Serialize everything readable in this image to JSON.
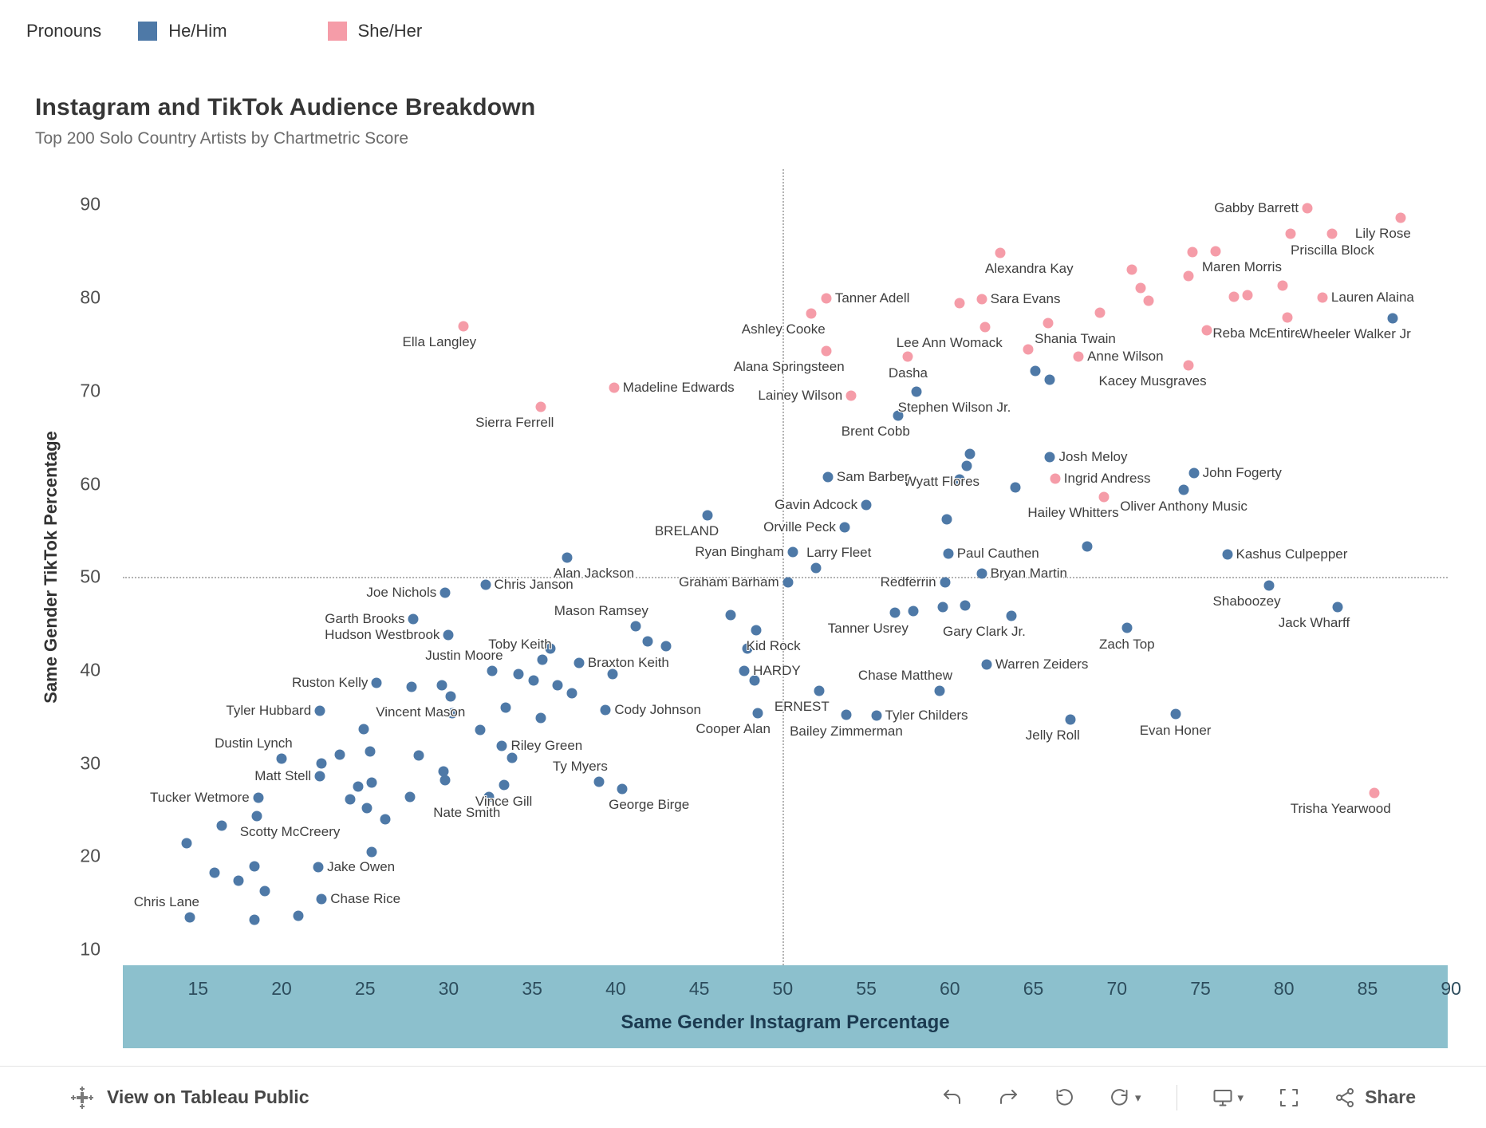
{
  "toolbar": {
    "view_label": "View on Tableau Public",
    "share_label": "Share"
  },
  "chart_data": {
    "type": "scatter",
    "title": "Instagram and TikTok Audience Breakdown",
    "subtitle": "Top 200 Solo Country Artists by Chartmetric Score",
    "legend_title": "Pronouns",
    "xlabel": "Same Gender Instagram Percentage",
    "ylabel": "Same Gender TikTok Percentage",
    "xlim": [
      10.5,
      89.8
    ],
    "ylim": [
      8.3,
      93.8
    ],
    "x_ticks": [
      15,
      20,
      25,
      30,
      35,
      40,
      45,
      50,
      55,
      60,
      65,
      70,
      75,
      80,
      85,
      90
    ],
    "y_ticks": [
      90,
      80,
      70,
      60,
      50,
      40,
      30,
      20,
      10
    ],
    "ref_x": 50,
    "ref_y": 50,
    "grid": "off",
    "legend_position": "top-left",
    "series": [
      {
        "key": "him",
        "name": "He/Him",
        "color": "#4E79A7"
      },
      {
        "key": "her",
        "name": "She/Her",
        "color": "#F59CA8"
      }
    ],
    "points": [
      {
        "n": "Gabby Barrett",
        "x": 81.4,
        "y": 89.6,
        "g": "her",
        "lp": "left"
      },
      {
        "n": "Lily Rose",
        "x": 87.0,
        "y": 88.6,
        "g": "her",
        "lp": "below-left"
      },
      {
        "n": "Priscilla Block",
        "x": 82.9,
        "y": 86.9,
        "g": "her",
        "lp": "below"
      },
      {
        "n": "Maren Morris",
        "x": 75.9,
        "y": 85.0,
        "g": "her",
        "lp": "below-right"
      },
      {
        "n": "Alexandra Kay",
        "x": 63.0,
        "y": 84.8,
        "g": "her",
        "lp": "below-right"
      },
      {
        "n": "Lauren Alaina",
        "x": 82.3,
        "y": 80.0,
        "g": "her",
        "lp": "right"
      },
      {
        "n": "Tanner Adell",
        "x": 52.6,
        "y": 79.9,
        "g": "her",
        "lp": "right"
      },
      {
        "n": "Sara Evans",
        "x": 61.9,
        "y": 79.8,
        "g": "her",
        "lp": "right"
      },
      {
        "n": "Ashley Cooke",
        "x": 51.7,
        "y": 78.3,
        "g": "her",
        "lp": "below-left"
      },
      {
        "n": "Lee Ann Womack",
        "x": 62.1,
        "y": 76.8,
        "g": "her",
        "lp": "below-left"
      },
      {
        "n": "Shania Twain",
        "x": 65.9,
        "y": 77.3,
        "g": "her",
        "lp": "below-right"
      },
      {
        "n": "Reba McEntire",
        "x": 80.2,
        "y": 77.9,
        "g": "her",
        "lp": "below-left"
      },
      {
        "n": "Anne Wilson",
        "x": 67.7,
        "y": 73.7,
        "g": "her",
        "lp": "right"
      },
      {
        "n": "Kacey Musgraves",
        "x": 74.3,
        "y": 72.7,
        "g": "her",
        "lp": "below-left"
      },
      {
        "n": "Alana Springsteen",
        "x": 52.6,
        "y": 74.3,
        "g": "her",
        "lp": "below-left"
      },
      {
        "n": "Dasha",
        "x": 57.5,
        "y": 73.7,
        "g": "her",
        "lp": "below"
      },
      {
        "n": "Lainey Wilson",
        "x": 54.1,
        "y": 69.5,
        "g": "her",
        "lp": "left"
      },
      {
        "n": "Madeline Edwards",
        "x": 39.9,
        "y": 70.3,
        "g": "her",
        "lp": "right"
      },
      {
        "n": "Sierra Ferrell",
        "x": 35.5,
        "y": 68.3,
        "g": "her",
        "lp": "below-left"
      },
      {
        "n": "Ella Langley",
        "x": 30.9,
        "y": 76.9,
        "g": "her",
        "lp": "below-left"
      },
      {
        "n": "Ingrid Andress",
        "x": 66.3,
        "y": 60.6,
        "g": "her",
        "lp": "right"
      },
      {
        "n": "Hailey Whitters",
        "x": 69.2,
        "y": 58.6,
        "g": "her",
        "lp": "below-left"
      },
      {
        "n": "Trisha Yearwood",
        "x": 85.4,
        "y": 26.8,
        "g": "her",
        "lp": "below-left"
      },
      {
        "x": 74.5,
        "y": 84.9,
        "g": "her"
      },
      {
        "x": 80.4,
        "y": 86.9,
        "g": "her"
      },
      {
        "x": 70.9,
        "y": 83.0,
        "g": "her"
      },
      {
        "x": 71.4,
        "y": 81.0,
        "g": "her"
      },
      {
        "x": 74.3,
        "y": 82.3,
        "g": "her"
      },
      {
        "x": 77.0,
        "y": 80.1,
        "g": "her"
      },
      {
        "x": 77.8,
        "y": 80.3,
        "g": "her"
      },
      {
        "x": 79.9,
        "y": 81.3,
        "g": "her"
      },
      {
        "x": 60.6,
        "y": 79.4,
        "g": "her"
      },
      {
        "x": 69.0,
        "y": 78.4,
        "g": "her"
      },
      {
        "x": 71.9,
        "y": 79.7,
        "g": "her"
      },
      {
        "x": 75.4,
        "y": 76.5,
        "g": "her"
      },
      {
        "x": 64.7,
        "y": 74.4,
        "g": "her"
      },
      {
        "n": "Wheeler Walker Jr",
        "x": 86.5,
        "y": 77.8,
        "g": "him",
        "lp": "below-left"
      },
      {
        "n": "Stephen Wilson Jr.",
        "x": 58.0,
        "y": 69.9,
        "g": "him",
        "lp": "below-right"
      },
      {
        "n": "Brent Cobb",
        "x": 56.9,
        "y": 67.3,
        "g": "him",
        "lp": "below-left"
      },
      {
        "n": "Josh Meloy",
        "x": 66.0,
        "y": 62.9,
        "g": "him",
        "lp": "right"
      },
      {
        "n": "Wyatt Flores",
        "x": 61.0,
        "y": 61.9,
        "g": "him",
        "lp": "below-left"
      },
      {
        "n": "Sam Barber",
        "x": 52.7,
        "y": 60.7,
        "g": "him",
        "lp": "right"
      },
      {
        "n": "John Fogerty",
        "x": 74.6,
        "y": 61.2,
        "g": "him",
        "lp": "right"
      },
      {
        "n": "Oliver Anthony Music",
        "x": 74.0,
        "y": 59.4,
        "g": "him",
        "lp": "below"
      },
      {
        "n": "Gavin Adcock",
        "x": 55.0,
        "y": 57.7,
        "g": "him",
        "lp": "left"
      },
      {
        "n": "BRELAND",
        "x": 45.5,
        "y": 56.6,
        "g": "him",
        "lp": "below-left"
      },
      {
        "n": "Orville Peck",
        "x": 53.7,
        "y": 55.3,
        "g": "him",
        "lp": "left"
      },
      {
        "n": "Ryan Bingham",
        "x": 50.6,
        "y": 52.7,
        "g": "him",
        "lp": "left"
      },
      {
        "n": "Larry Fleet",
        "x": 52.0,
        "y": 51.0,
        "g": "him",
        "lp": "above-right"
      },
      {
        "n": "Paul Cauthen",
        "x": 59.9,
        "y": 52.5,
        "g": "him",
        "lp": "right"
      },
      {
        "n": "Alan Jackson",
        "x": 37.1,
        "y": 52.1,
        "g": "him",
        "lp": "below-right"
      },
      {
        "n": "Chris Janson",
        "x": 32.2,
        "y": 49.2,
        "g": "him",
        "lp": "right"
      },
      {
        "n": "Joe Nichols",
        "x": 29.8,
        "y": 48.3,
        "g": "him",
        "lp": "left"
      },
      {
        "n": "Graham Barham",
        "x": 50.3,
        "y": 49.4,
        "g": "him",
        "lp": "left"
      },
      {
        "n": "Redferrin",
        "x": 59.7,
        "y": 49.4,
        "g": "him",
        "lp": "left"
      },
      {
        "n": "Bryan Martin",
        "x": 61.9,
        "y": 50.4,
        "g": "him",
        "lp": "right"
      },
      {
        "n": "Kashus Culpepper",
        "x": 76.6,
        "y": 52.4,
        "g": "him",
        "lp": "right"
      },
      {
        "n": "Shaboozey",
        "x": 79.1,
        "y": 49.1,
        "g": "him",
        "lp": "below-left"
      },
      {
        "n": "Jack Wharff",
        "x": 83.2,
        "y": 46.8,
        "g": "him",
        "lp": "below-left"
      },
      {
        "n": "Mason Ramsey",
        "x": 41.2,
        "y": 44.7,
        "g": "him",
        "lp": "above-left"
      },
      {
        "n": "Garth Brooks",
        "x": 27.9,
        "y": 45.5,
        "g": "him",
        "lp": "left"
      },
      {
        "n": "Kid Rock",
        "x": 48.4,
        "y": 44.3,
        "g": "him",
        "lp": "below-right"
      },
      {
        "n": "Tanner Usrey",
        "x": 56.7,
        "y": 46.2,
        "g": "him",
        "lp": "below-left"
      },
      {
        "n": "Gary Clark Jr.",
        "x": 63.7,
        "y": 45.8,
        "g": "him",
        "lp": "below-left"
      },
      {
        "n": "Zach Top",
        "x": 70.6,
        "y": 44.5,
        "g": "him",
        "lp": "below"
      },
      {
        "n": "Hudson Westbrook",
        "x": 30.0,
        "y": 43.8,
        "g": "him",
        "lp": "left"
      },
      {
        "n": "Toby Keith",
        "x": 35.6,
        "y": 41.1,
        "g": "him",
        "lp": "above-left"
      },
      {
        "n": "Braxton Keith",
        "x": 37.8,
        "y": 40.8,
        "g": "him",
        "lp": "right"
      },
      {
        "n": "Justin Moore",
        "x": 32.6,
        "y": 39.9,
        "g": "him",
        "lp": "above-left"
      },
      {
        "n": "Ruston Kelly",
        "x": 25.7,
        "y": 38.6,
        "g": "him",
        "lp": "left"
      },
      {
        "n": "HARDY",
        "x": 47.7,
        "y": 39.9,
        "g": "him",
        "lp": "right"
      },
      {
        "n": "Warren Zeiders",
        "x": 62.2,
        "y": 40.6,
        "g": "him",
        "lp": "right"
      },
      {
        "n": "Chase Matthew",
        "x": 59.4,
        "y": 37.8,
        "g": "him",
        "lp": "above-left"
      },
      {
        "n": "Vincent Mason",
        "x": 30.1,
        "y": 37.2,
        "g": "him",
        "lp": "below-left"
      },
      {
        "n": "Tyler Hubbard",
        "x": 22.3,
        "y": 35.6,
        "g": "him",
        "lp": "left"
      },
      {
        "n": "Cody Johnson",
        "x": 39.4,
        "y": 35.7,
        "g": "him",
        "lp": "right"
      },
      {
        "n": "ERNEST",
        "x": 52.2,
        "y": 37.8,
        "g": "him",
        "lp": "below-left"
      },
      {
        "n": "Tyler Childers",
        "x": 55.6,
        "y": 35.1,
        "g": "him",
        "lp": "right"
      },
      {
        "n": "Cooper Alan",
        "x": 48.5,
        "y": 35.4,
        "g": "him",
        "lp": "below-left"
      },
      {
        "n": "Bailey Zimmerman",
        "x": 53.8,
        "y": 35.2,
        "g": "him",
        "lp": "below"
      },
      {
        "n": "Jelly Roll",
        "x": 67.2,
        "y": 34.7,
        "g": "him",
        "lp": "below-left"
      },
      {
        "n": "Evan Honer",
        "x": 73.5,
        "y": 35.3,
        "g": "him",
        "lp": "below"
      },
      {
        "n": "Dustin Lynch",
        "x": 20.0,
        "y": 30.5,
        "g": "him",
        "lp": "above-left"
      },
      {
        "n": "Riley Green",
        "x": 33.2,
        "y": 31.9,
        "g": "him",
        "lp": "right"
      },
      {
        "n": "Matt Stell",
        "x": 22.3,
        "y": 28.6,
        "g": "him",
        "lp": "left"
      },
      {
        "n": "Ty Myers",
        "x": 39.0,
        "y": 28.0,
        "g": "him",
        "lp": "above-left"
      },
      {
        "n": "Tucker Wetmore",
        "x": 18.6,
        "y": 26.3,
        "g": "him",
        "lp": "left"
      },
      {
        "n": "Vince Gill",
        "x": 33.3,
        "y": 27.7,
        "g": "him",
        "lp": "below"
      },
      {
        "n": "George Birge",
        "x": 40.4,
        "y": 27.2,
        "g": "him",
        "lp": "below-right"
      },
      {
        "n": "Nate Smith",
        "x": 32.4,
        "y": 26.4,
        "g": "him",
        "lp": "below-left"
      },
      {
        "n": "Scotty McCreery",
        "x": 18.5,
        "y": 24.3,
        "g": "him",
        "lp": "below-right"
      },
      {
        "n": "Jake Owen",
        "x": 22.2,
        "y": 18.8,
        "g": "him",
        "lp": "right"
      },
      {
        "n": "Chase Rice",
        "x": 22.4,
        "y": 15.4,
        "g": "him",
        "lp": "right"
      },
      {
        "n": "Chris Lane",
        "x": 14.5,
        "y": 13.4,
        "g": "him",
        "lp": "above-left"
      },
      {
        "x": 57.8,
        "y": 46.3,
        "g": "him"
      },
      {
        "x": 59.6,
        "y": 46.8,
        "g": "him"
      },
      {
        "x": 60.9,
        "y": 46.9,
        "g": "him"
      },
      {
        "x": 60.6,
        "y": 60.5,
        "g": "him"
      },
      {
        "x": 61.2,
        "y": 63.2,
        "g": "him"
      },
      {
        "x": 59.8,
        "y": 56.2,
        "g": "him"
      },
      {
        "x": 63.9,
        "y": 59.6,
        "g": "him"
      },
      {
        "x": 68.2,
        "y": 53.3,
        "g": "him"
      },
      {
        "x": 65.1,
        "y": 72.1,
        "g": "him"
      },
      {
        "x": 66.0,
        "y": 71.2,
        "g": "him"
      },
      {
        "x": 27.8,
        "y": 38.2,
        "g": "him"
      },
      {
        "x": 29.6,
        "y": 38.4,
        "g": "him"
      },
      {
        "x": 34.2,
        "y": 39.6,
        "g": "him"
      },
      {
        "x": 35.1,
        "y": 38.9,
        "g": "him"
      },
      {
        "x": 36.5,
        "y": 38.4,
        "g": "him"
      },
      {
        "x": 37.4,
        "y": 37.5,
        "g": "him"
      },
      {
        "x": 33.4,
        "y": 36.0,
        "g": "him"
      },
      {
        "x": 31.9,
        "y": 33.6,
        "g": "him"
      },
      {
        "x": 35.5,
        "y": 34.9,
        "g": "him"
      },
      {
        "x": 33.8,
        "y": 30.6,
        "g": "him"
      },
      {
        "x": 36.1,
        "y": 42.3,
        "g": "him"
      },
      {
        "x": 39.8,
        "y": 39.6,
        "g": "him"
      },
      {
        "x": 41.9,
        "y": 43.1,
        "g": "him"
      },
      {
        "x": 43.0,
        "y": 42.6,
        "g": "him"
      },
      {
        "x": 46.9,
        "y": 45.9,
        "g": "him"
      },
      {
        "x": 47.9,
        "y": 42.3,
        "g": "him"
      },
      {
        "x": 48.3,
        "y": 38.9,
        "g": "him"
      },
      {
        "x": 24.9,
        "y": 33.7,
        "g": "him"
      },
      {
        "x": 23.5,
        "y": 30.9,
        "g": "him"
      },
      {
        "x": 25.3,
        "y": 31.3,
        "g": "him"
      },
      {
        "x": 28.2,
        "y": 30.8,
        "g": "him"
      },
      {
        "x": 29.8,
        "y": 28.2,
        "g": "him"
      },
      {
        "x": 22.4,
        "y": 30.0,
        "g": "him"
      },
      {
        "x": 24.6,
        "y": 27.5,
        "g": "him"
      },
      {
        "x": 25.4,
        "y": 27.9,
        "g": "him"
      },
      {
        "x": 24.1,
        "y": 26.1,
        "g": "him"
      },
      {
        "x": 25.1,
        "y": 25.2,
        "g": "him"
      },
      {
        "x": 27.7,
        "y": 26.4,
        "g": "him"
      },
      {
        "x": 29.7,
        "y": 29.1,
        "g": "him"
      },
      {
        "x": 30.2,
        "y": 35.4,
        "g": "him"
      },
      {
        "x": 26.2,
        "y": 24.0,
        "g": "him"
      },
      {
        "x": 25.4,
        "y": 20.5,
        "g": "him"
      },
      {
        "x": 14.3,
        "y": 21.4,
        "g": "him"
      },
      {
        "x": 16.0,
        "y": 18.2,
        "g": "him"
      },
      {
        "x": 17.4,
        "y": 17.4,
        "g": "him"
      },
      {
        "x": 18.4,
        "y": 18.9,
        "g": "him"
      },
      {
        "x": 19.0,
        "y": 16.3,
        "g": "him"
      },
      {
        "x": 18.4,
        "y": 13.2,
        "g": "him"
      },
      {
        "x": 21.0,
        "y": 13.6,
        "g": "him"
      },
      {
        "x": 16.4,
        "y": 23.3,
        "g": "him"
      }
    ]
  }
}
